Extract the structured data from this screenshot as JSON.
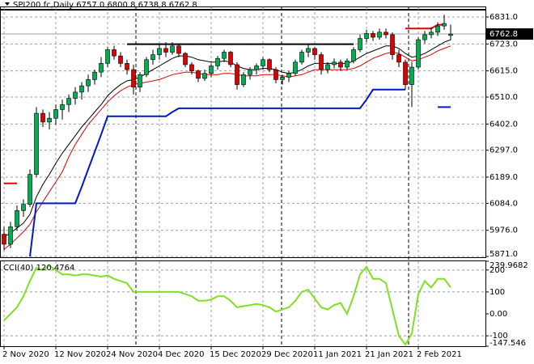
{
  "chart_data": [
    {
      "type": "candlestick",
      "title": "SPI200.fc,Daily  6757.0 6800.8 6738.8 6762.8",
      "categories": [
        "2 Nov 2020",
        null,
        null,
        null,
        null,
        null,
        null,
        null,
        "12 Nov 2020",
        null,
        null,
        null,
        null,
        null,
        null,
        null,
        "24 Nov 2020",
        null,
        null,
        null,
        null,
        null,
        null,
        null,
        "4 Dec 2020",
        null,
        null,
        null,
        null,
        null,
        null,
        null,
        "15 Dec 2020",
        null,
        null,
        null,
        null,
        null,
        null,
        null,
        "29 Dec 2020",
        null,
        null,
        null,
        null,
        null,
        null,
        null,
        "11 Jan 2021",
        null,
        null,
        null,
        null,
        null,
        null,
        null,
        "21 Jan 2021",
        null,
        null,
        null,
        null,
        null,
        null,
        null,
        "2 Feb 2021",
        null,
        null,
        null,
        null,
        null
      ],
      "candles": [
        [
          5960,
          5990,
          5895,
          5920
        ],
        [
          5920,
          6010,
          5905,
          5990
        ],
        [
          5990,
          6075,
          5975,
          6055
        ],
        [
          6055,
          6100,
          6030,
          6080
        ],
        [
          6080,
          6220,
          6070,
          6200
        ],
        [
          6200,
          6470,
          6190,
          6445
        ],
        [
          6445,
          6460,
          6390,
          6410
        ],
        [
          6410,
          6450,
          6380,
          6425
        ],
        [
          6425,
          6480,
          6400,
          6460
        ],
        [
          6460,
          6500,
          6420,
          6480
        ],
        [
          6480,
          6520,
          6450,
          6505
        ],
        [
          6505,
          6550,
          6480,
          6530
        ],
        [
          6530,
          6570,
          6500,
          6555
        ],
        [
          6555,
          6600,
          6530,
          6580
        ],
        [
          6580,
          6620,
          6560,
          6610
        ],
        [
          6610,
          6670,
          6590,
          6645
        ],
        [
          6645,
          6710,
          6630,
          6700
        ],
        [
          6700,
          6715,
          6660,
          6675
        ],
        [
          6675,
          6690,
          6630,
          6645
        ],
        [
          6645,
          6660,
          6600,
          6620
        ],
        [
          6620,
          6640,
          6520,
          6550
        ],
        [
          6550,
          6610,
          6530,
          6600
        ],
        [
          6600,
          6670,
          6590,
          6660
        ],
        [
          6660,
          6700,
          6640,
          6680
        ],
        [
          6680,
          6720,
          6660,
          6705
        ],
        [
          6705,
          6730,
          6670,
          6690
        ],
        [
          6690,
          6730,
          6680,
          6715
        ],
        [
          6715,
          6725,
          6670,
          6685
        ],
        [
          6685,
          6690,
          6630,
          6640
        ],
        [
          6640,
          6650,
          6600,
          6615
        ],
        [
          6615,
          6620,
          6570,
          6585
        ],
        [
          6585,
          6620,
          6575,
          6605
        ],
        [
          6605,
          6645,
          6590,
          6635
        ],
        [
          6635,
          6675,
          6620,
          6665
        ],
        [
          6665,
          6700,
          6650,
          6690
        ],
        [
          6690,
          6695,
          6630,
          6640
        ],
        [
          6640,
          6650,
          6540,
          6560
        ],
        [
          6560,
          6610,
          6550,
          6600
        ],
        [
          6600,
          6630,
          6580,
          6620
        ],
        [
          6620,
          6645,
          6600,
          6635
        ],
        [
          6635,
          6670,
          6620,
          6660
        ],
        [
          6660,
          6665,
          6610,
          6620
        ],
        [
          6620,
          6630,
          6565,
          6580
        ],
        [
          6580,
          6600,
          6560,
          6590
        ],
        [
          6590,
          6615,
          6570,
          6605
        ],
        [
          6605,
          6660,
          6595,
          6650
        ],
        [
          6650,
          6700,
          6640,
          6690
        ],
        [
          6690,
          6720,
          6670,
          6705
        ],
        [
          6705,
          6710,
          6660,
          6680
        ],
        [
          6680,
          6690,
          6600,
          6620
        ],
        [
          6620,
          6650,
          6605,
          6640
        ],
        [
          6640,
          6665,
          6625,
          6650
        ],
        [
          6650,
          6660,
          6615,
          6630
        ],
        [
          6630,
          6665,
          6620,
          6655
        ],
        [
          6655,
          6710,
          6645,
          6700
        ],
        [
          6700,
          6760,
          6690,
          6745
        ],
        [
          6745,
          6780,
          6730,
          6765
        ],
        [
          6765,
          6775,
          6735,
          6750
        ],
        [
          6750,
          6785,
          6740,
          6770
        ],
        [
          6770,
          6785,
          6745,
          6760
        ],
        [
          6760,
          6770,
          6660,
          6680
        ],
        [
          6680,
          6700,
          6630,
          6650
        ],
        [
          6650,
          6660,
          6540,
          6560
        ],
        [
          6560,
          6650,
          6470,
          6630
        ],
        [
          6630,
          6750,
          6620,
          6740
        ],
        [
          6740,
          6775,
          6725,
          6760
        ],
        [
          6760,
          6790,
          6745,
          6770
        ],
        [
          6770,
          6810,
          6755,
          6795
        ],
        [
          6795,
          6840,
          6780,
          6805
        ],
        [
          6757,
          6800.8,
          6738.8,
          6762.8
        ]
      ],
      "up_color": "#00b050",
      "down_color": "#e00000",
      "overlays": [
        {
          "color": "#000000",
          "width": 1,
          "values": [
            5950,
            5965,
            5985,
            6005,
            6040,
            6110,
            6160,
            6200,
            6245,
            6285,
            6320,
            6355,
            6390,
            6420,
            6450,
            6480,
            6515,
            6540,
            6560,
            6575,
            6580,
            6590,
            6605,
            6620,
            6635,
            6650,
            6665,
            6675,
            6675,
            6670,
            6660,
            6655,
            6650,
            6650,
            6655,
            6650,
            6635,
            6625,
            6620,
            6620,
            6625,
            6625,
            6620,
            6610,
            6605,
            6610,
            6620,
            6635,
            6645,
            6645,
            6645,
            6645,
            6645,
            6645,
            6655,
            6670,
            6685,
            6695,
            6705,
            6715,
            6715,
            6705,
            6685,
            6670,
            6675,
            6685,
            6700,
            6715,
            6730,
            6740
          ]
        },
        {
          "color": "#e00000",
          "width": 1,
          "values": [
            5900,
            5920,
            5945,
            5970,
            6000,
            6050,
            6090,
            6130,
            6170,
            6210,
            6270,
            6320,
            6360,
            6400,
            6430,
            6460,
            6490,
            6515,
            6535,
            6550,
            6560,
            6565,
            6570,
            6575,
            6580,
            6590,
            6600,
            6605,
            6610,
            6610,
            6605,
            6600,
            6600,
            6600,
            6605,
            6605,
            6600,
            6595,
            6595,
            6595,
            6600,
            6600,
            6600,
            6595,
            6590,
            6595,
            6600,
            6610,
            6620,
            6620,
            6620,
            6620,
            6620,
            6620,
            6625,
            6635,
            6650,
            6665,
            6675,
            6685,
            6690,
            6685,
            6670,
            6655,
            6660,
            6670,
            6680,
            6695,
            6705,
            6715
          ]
        },
        {
          "color": "#0018c8",
          "width": 2,
          "values": [
            null,
            null,
            null,
            null,
            5871,
            6084,
            6084,
            6084,
            6084,
            6084,
            6084,
            6084,
            6150,
            6220,
            6290,
            6360,
            6433,
            6433,
            6433,
            6433,
            6433,
            6433,
            6433,
            6433,
            6433,
            6433,
            6450,
            6465,
            6465,
            6465,
            6465,
            6465,
            6465,
            6465,
            6465,
            6465,
            6465,
            6465,
            6465,
            6465,
            6465,
            6465,
            6465,
            6465,
            6465,
            6465,
            6465,
            6465,
            6465,
            6465,
            6465,
            6465,
            6465,
            6465,
            6465,
            6465,
            6500,
            6540,
            6540,
            6540,
            6540,
            6540,
            6540,
            null,
            null,
            null,
            null,
            6470,
            6470,
            6470
          ]
        },
        {
          "color": "#e00000",
          "width": 2,
          "values": [
            6164,
            6164,
            6164,
            null,
            null,
            null,
            null,
            null,
            null,
            null,
            null,
            null,
            null,
            null,
            null,
            null,
            null,
            null,
            null,
            null,
            null,
            null,
            null,
            null,
            null,
            null,
            null,
            null,
            null,
            null,
            null,
            null,
            null,
            null,
            null,
            null,
            null,
            null,
            null,
            null,
            null,
            null,
            null,
            null,
            null,
            null,
            null,
            null,
            null,
            null,
            null,
            null,
            null,
            null,
            null,
            null,
            null,
            null,
            null,
            null,
            null,
            null,
            6785,
            6785,
            6785,
            6785,
            6785,
            6800,
            6800,
            null
          ]
        }
      ],
      "level": {
        "value": 6722,
        "start": 19,
        "end": 54,
        "color": "#000000"
      },
      "price_line": {
        "value": 6762.8,
        "label": "6762.8"
      },
      "ylim": [
        5868,
        6870
      ],
      "yticks": [
        {
          "value": 6831,
          "label": "6831.0"
        },
        {
          "value": 6723,
          "label": "6723.0"
        },
        {
          "value": 6615,
          "label": "6615.0"
        },
        {
          "value": 6510,
          "label": "6510.0"
        },
        {
          "value": 6402,
          "label": "6402.0"
        },
        {
          "value": 6297,
          "label": "6297.0"
        },
        {
          "value": 6189,
          "label": "6189.0"
        },
        {
          "value": 6084,
          "label": "6084.0"
        },
        {
          "value": 5976,
          "label": "5976.0"
        },
        {
          "value": 5871,
          "label": "5871.0"
        }
      ],
      "grid": true
    },
    {
      "type": "line",
      "title": "CCI(40) 120.4764",
      "color": "#80e020",
      "values": [
        -30,
        0,
        30,
        80,
        150,
        210,
        200,
        220,
        200,
        180,
        180,
        175,
        180,
        180,
        175,
        170,
        175,
        160,
        150,
        140,
        100,
        100,
        100,
        100,
        100,
        100,
        100,
        100,
        90,
        80,
        60,
        60,
        65,
        80,
        80,
        60,
        30,
        35,
        40,
        45,
        40,
        30,
        10,
        20,
        30,
        60,
        100,
        110,
        70,
        30,
        20,
        40,
        50,
        0,
        80,
        180,
        215,
        160,
        160,
        140,
        20,
        -100,
        -140,
        -90,
        90,
        150,
        120,
        160,
        160,
        120.4764
      ],
      "ylim": [
        -147.546,
        239.9682
      ],
      "yticks": [
        {
          "value": 239.9682,
          "label": "239.9682"
        },
        200,
        100,
        {
          "value": 0,
          "label": "0.00"
        },
        -100,
        {
          "value": -147.546,
          "label": "-147.546"
        }
      ],
      "levels": [
        200,
        100,
        -100
      ]
    }
  ]
}
